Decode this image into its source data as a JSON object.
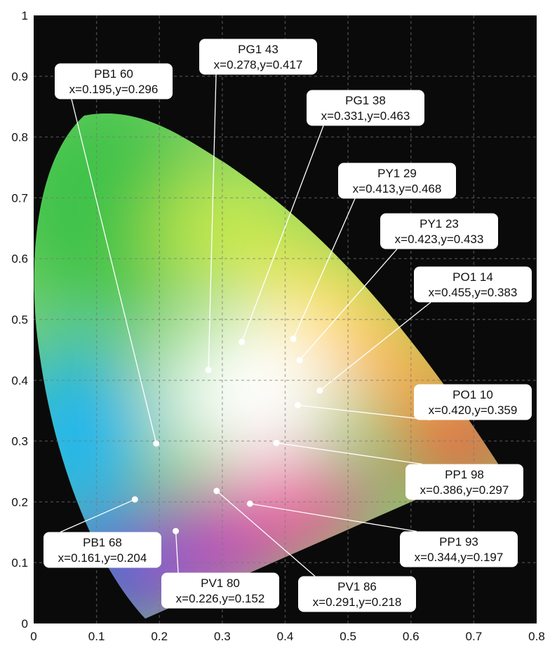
{
  "chart_data": {
    "type": "scatter",
    "title": "",
    "xlabel": "",
    "ylabel": "",
    "xlim": [
      0,
      0.8
    ],
    "ylim": [
      0,
      1
    ],
    "x_ticks": [
      "0",
      "0.1",
      "0.2",
      "0.3",
      "0.4",
      "0.5",
      "0.6",
      "0.7",
      "0.8"
    ],
    "y_ticks": [
      "0",
      "0.1",
      "0.2",
      "0.3",
      "0.4",
      "0.5",
      "0.6",
      "0.7",
      "0.8",
      "0.9",
      "1"
    ],
    "grid": true,
    "colors": {
      "plot_background": "#0a0a0a",
      "grid": "#777777",
      "point": "#ffffff",
      "leader_line": "#ffffff",
      "label_box": "#ffffff"
    },
    "points": [
      {
        "name": "PB1 60",
        "coords": "x=0.195,y=0.296",
        "x": 0.195,
        "y": 0.296
      },
      {
        "name": "PG1 43",
        "coords": "x=0.278,y=0.417",
        "x": 0.278,
        "y": 0.417
      },
      {
        "name": "PG1 38",
        "coords": "x=0.331,y=0.463",
        "x": 0.331,
        "y": 0.463
      },
      {
        "name": "PY1 29",
        "coords": "x=0.413,y=0.468",
        "x": 0.413,
        "y": 0.468
      },
      {
        "name": "PY1 23",
        "coords": "x=0.423,y=0.433",
        "x": 0.423,
        "y": 0.433
      },
      {
        "name": "PO1 14",
        "coords": "x=0.455,y=0.383",
        "x": 0.455,
        "y": 0.383
      },
      {
        "name": "PO1 10",
        "coords": "x=0.420,y=0.359",
        "x": 0.42,
        "y": 0.359
      },
      {
        "name": "PP1 98",
        "coords": "x=0.386,y=0.297",
        "x": 0.386,
        "y": 0.297
      },
      {
        "name": "PP1 93",
        "coords": "x=0.344,y=0.197",
        "x": 0.344,
        "y": 0.197
      },
      {
        "name": "PV1 86",
        "coords": "x=0.291,y=0.218",
        "x": 0.291,
        "y": 0.218
      },
      {
        "name": "PV1 80",
        "coords": "x=0.226,y=0.152",
        "x": 0.226,
        "y": 0.152
      },
      {
        "name": "PB1 68",
        "coords": "x=0.161,y=0.204",
        "x": 0.161,
        "y": 0.204
      }
    ]
  }
}
